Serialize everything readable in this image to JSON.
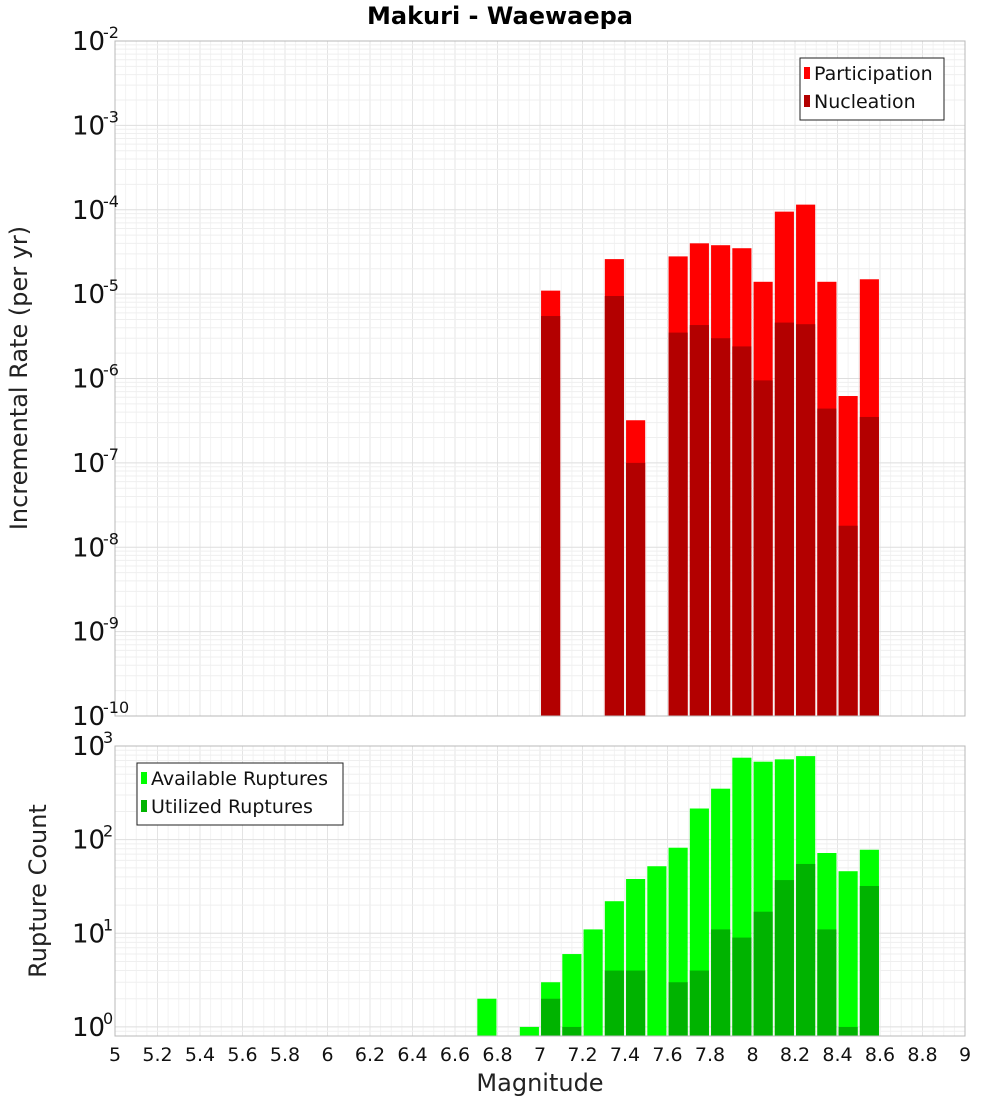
{
  "chart_data": [
    {
      "type": "bar",
      "title": "Makuri - Waewaepa",
      "ylabel": "Incremental Rate (per yr)",
      "xlabel": "",
      "y_scale": "log",
      "ylim": [
        1e-10,
        0.01
      ],
      "xlim": [
        5,
        9
      ],
      "grid": true,
      "legend_position": "top-right",
      "bar_width": 0.09,
      "series": [
        {
          "name": "Participation",
          "color": "#ff0000",
          "x": [
            7.05,
            7.35,
            7.45,
            7.65,
            7.75,
            7.85,
            7.95,
            8.05,
            8.15,
            8.25,
            8.35,
            8.45,
            8.55
          ],
          "values": [
            1.1e-05,
            2.6e-05,
            3.2e-07,
            2.8e-05,
            4e-05,
            3.8e-05,
            3.5e-05,
            1.4e-05,
            9.5e-05,
            0.000115,
            1.4e-05,
            6.2e-07,
            1.5e-05
          ]
        },
        {
          "name": "Nucleation",
          "color": "#b30000",
          "x": [
            7.05,
            7.35,
            7.45,
            7.65,
            7.75,
            7.85,
            7.95,
            8.05,
            8.15,
            8.25,
            8.35,
            8.45,
            8.55
          ],
          "values": [
            5.5e-06,
            9.5e-06,
            1e-07,
            3.5e-06,
            4.3e-06,
            3e-06,
            2.4e-06,
            9.5e-07,
            4.6e-06,
            4.4e-06,
            4.4e-07,
            1.8e-08,
            3.5e-07
          ]
        }
      ]
    },
    {
      "type": "bar",
      "title": "",
      "ylabel": "Rupture Count",
      "xlabel": "Magnitude",
      "y_scale": "log",
      "ylim": [
        0.8,
        1000
      ],
      "xlim": [
        5,
        9
      ],
      "grid": true,
      "legend_position": "top-left",
      "bar_width": 0.09,
      "xticks": [
        "5",
        "5.2",
        "5.4",
        "5.6",
        "5.8",
        "6",
        "6.2",
        "6.4",
        "6.6",
        "6.8",
        "7",
        "7.2",
        "7.4",
        "7.6",
        "7.8",
        "8",
        "8.2",
        "8.4",
        "8.6",
        "8.8",
        "9"
      ],
      "series": [
        {
          "name": "Available Ruptures",
          "color": "#00ff00",
          "x": [
            6.75,
            6.95,
            7.05,
            7.15,
            7.25,
            7.35,
            7.45,
            7.55,
            7.65,
            7.75,
            7.85,
            7.95,
            8.05,
            8.15,
            8.25,
            8.35,
            8.45,
            8.55
          ],
          "values": [
            2,
            1,
            3,
            6,
            11,
            22,
            38,
            52,
            82,
            215,
            350,
            750,
            680,
            720,
            780,
            72,
            46,
            78
          ]
        },
        {
          "name": "Utilized Ruptures",
          "color": "#00b300",
          "x": [
            7.05,
            7.15,
            7.35,
            7.45,
            7.65,
            7.75,
            7.85,
            7.95,
            8.05,
            8.15,
            8.25,
            8.35,
            8.45,
            8.55
          ],
          "values": [
            2,
            1,
            4,
            4,
            3,
            4,
            11,
            9,
            17,
            37,
            55,
            11,
            1,
            32
          ]
        }
      ]
    }
  ]
}
